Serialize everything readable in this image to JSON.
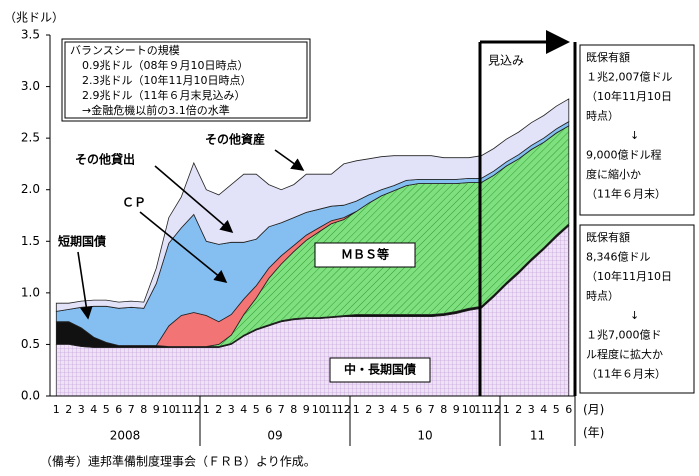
{
  "chart_data": {
    "type": "stacked_area",
    "y_unit": "（兆ドル）",
    "categories": [
      "1",
      "2",
      "3",
      "4",
      "5",
      "6",
      "7",
      "8",
      "9",
      "10",
      "11",
      "12",
      "1",
      "2",
      "3",
      "4",
      "5",
      "6",
      "7",
      "8",
      "9",
      "10",
      "11",
      "12",
      "1",
      "2",
      "3",
      "4",
      "5",
      "6",
      "7",
      "8",
      "9",
      "10",
      "11",
      "12",
      "1",
      "2",
      "3",
      "4",
      "5",
      "6"
    ],
    "years": [
      "2008",
      "09",
      "10",
      "11"
    ],
    "x_unit_month": "(月)",
    "x_unit_year": "(年)",
    "ylim": [
      0,
      3.5
    ],
    "yticks": [
      {
        "value": 0,
        "label": "0.0"
      },
      {
        "value": 0.5,
        "label": "0.5"
      },
      {
        "value": 1,
        "label": "1.0"
      },
      {
        "value": 1.5,
        "label": "1.5"
      },
      {
        "value": 2,
        "label": "2.0"
      },
      {
        "value": 2.5,
        "label": "2.5"
      },
      {
        "value": 3,
        "label": "3.0"
      },
      {
        "value": 3.5,
        "label": "3.5"
      }
    ],
    "forecast_start": 34,
    "forecast_label": "見込み",
    "series": [
      {
        "name": "中・長期国債",
        "color": "#efe2f7",
        "hatch": "grid",
        "values": [
          0.5,
          0.5,
          0.48,
          0.47,
          0.47,
          0.47,
          0.47,
          0.47,
          0.47,
          0.47,
          0.47,
          0.47,
          0.47,
          0.47,
          0.5,
          0.58,
          0.64,
          0.68,
          0.72,
          0.74,
          0.75,
          0.75,
          0.76,
          0.77,
          0.77,
          0.77,
          0.77,
          0.77,
          0.77,
          0.77,
          0.77,
          0.78,
          0.8,
          0.83,
          0.85,
          0.96,
          1.08,
          1.19,
          1.31,
          1.42,
          1.54,
          1.65
        ]
      },
      {
        "name": "短期国債",
        "color": "#111111",
        "values": [
          0.22,
          0.22,
          0.18,
          0.1,
          0.05,
          0.02,
          0.02,
          0.02,
          0.02,
          0.01,
          0.01,
          0.01,
          0.01,
          0.01,
          0.01,
          0.01,
          0.01,
          0.01,
          0.01,
          0.01,
          0.01,
          0.01,
          0.01,
          0.01,
          0.02,
          0.02,
          0.02,
          0.02,
          0.02,
          0.02,
          0.02,
          0.02,
          0.02,
          0.02,
          0.02,
          0.02,
          0.02,
          0.02,
          0.02,
          0.02,
          0.02,
          0.02
        ]
      },
      {
        "name": "ＭＢＳ等",
        "color": "#7fe07f",
        "hatch": "diagonal",
        "values": [
          0,
          0,
          0,
          0,
          0,
          0,
          0,
          0,
          0,
          0,
          0,
          0,
          0,
          0.02,
          0.08,
          0.2,
          0.3,
          0.45,
          0.55,
          0.65,
          0.75,
          0.83,
          0.9,
          0.93,
          1.0,
          1.08,
          1.15,
          1.2,
          1.25,
          1.27,
          1.27,
          1.26,
          1.24,
          1.22,
          1.2,
          1.16,
          1.13,
          1.09,
          1.06,
          1.02,
          0.99,
          0.95
        ]
      },
      {
        "name": "ＣＰ",
        "color": "#f27474",
        "values": [
          0,
          0,
          0,
          0,
          0,
          0,
          0,
          0,
          0,
          0.2,
          0.3,
          0.33,
          0.3,
          0.22,
          0.2,
          0.15,
          0.12,
          0.1,
          0.08,
          0.06,
          0.05,
          0.04,
          0.03,
          0.02,
          0,
          0,
          0,
          0,
          0,
          0,
          0,
          0,
          0,
          0,
          0,
          0,
          0,
          0,
          0,
          0,
          0,
          0
        ]
      },
      {
        "name": "その他貸出",
        "color": "#85bff2",
        "values": [
          0.1,
          0.12,
          0.2,
          0.3,
          0.35,
          0.36,
          0.37,
          0.36,
          0.6,
          0.8,
          0.85,
          0.95,
          0.72,
          0.75,
          0.7,
          0.55,
          0.45,
          0.4,
          0.32,
          0.27,
          0.22,
          0.18,
          0.14,
          0.12,
          0.1,
          0.08,
          0.06,
          0.05,
          0.05,
          0.04,
          0.04,
          0.04,
          0.04,
          0.04,
          0.04,
          0.04,
          0.04,
          0.04,
          0.04,
          0.04,
          0.04,
          0.04
        ]
      },
      {
        "name": "その他資産",
        "color": "#e2e2f8",
        "values": [
          0.08,
          0.06,
          0.06,
          0.06,
          0.06,
          0.06,
          0.06,
          0.06,
          0.15,
          0.25,
          0.3,
          0.5,
          0.5,
          0.48,
          0.56,
          0.66,
          0.63,
          0.41,
          0.32,
          0.32,
          0.37,
          0.34,
          0.31,
          0.4,
          0.39,
          0.35,
          0.32,
          0.29,
          0.24,
          0.23,
          0.23,
          0.21,
          0.21,
          0.2,
          0.22,
          0.22,
          0.22,
          0.22,
          0.22,
          0.22,
          0.22,
          0.22
        ]
      }
    ],
    "summary_box": [
      "バランスシートの規模",
      "0.9兆ドル（08年９月10日時点）",
      "2.3兆ドル（10年11月10日時点）",
      "2.9兆ドル（11年６月末見込み）",
      "→金融危機以前の3.1倍の水準"
    ],
    "right_box_1": [
      "既保有額",
      "１兆2,007億ドル",
      "（10年11月10日",
      "時点）",
      "↓",
      "9,000億ドル程",
      "度に縮小か",
      "（11年６月末）"
    ],
    "right_box_2": [
      "既保有額",
      "8,346億ドル",
      "（10年11月10日",
      "時点）",
      "↓",
      "１兆7,000億ド",
      "ル程度に拡大か",
      "（11年６月末）"
    ],
    "source": "（備考）連邦準備制度理事会（ＦＲＢ）より作成。"
  }
}
